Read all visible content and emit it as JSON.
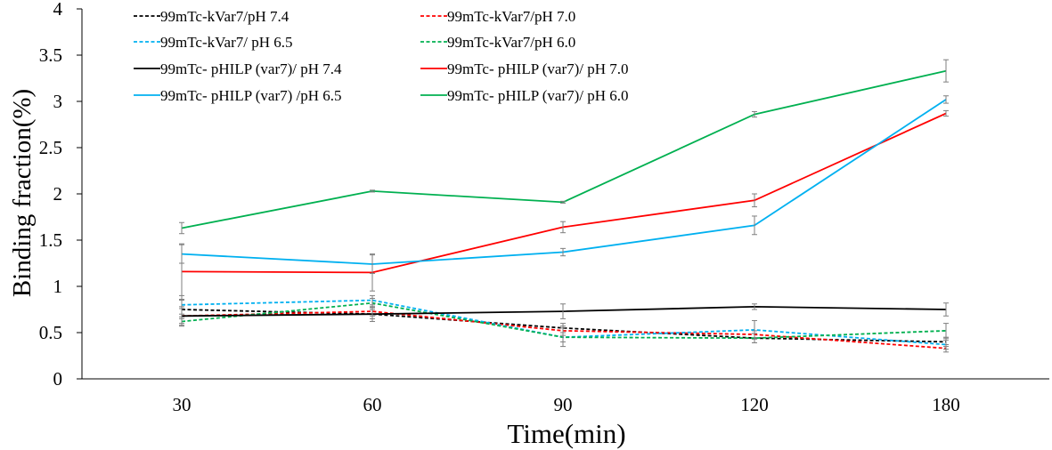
{
  "chart_data": {
    "type": "line",
    "title": "",
    "xlabel": "Time(min)",
    "ylabel": "Binding fraction(%)",
    "categories": [
      "30",
      "60",
      "90",
      "120",
      "180"
    ],
    "ylim": [
      0,
      4
    ],
    "yticks": [
      "0",
      "0.5",
      "1",
      "1.5",
      "2",
      "2.5",
      "3",
      "3.5",
      "4"
    ],
    "legend_position": "top-left",
    "series": [
      {
        "name": "99mTc-kVar7/pH 7.4",
        "color": "#000000",
        "dashed": true,
        "values": [
          0.75,
          0.7,
          0.55,
          0.44,
          0.4
        ],
        "errors": [
          0.1,
          0.05,
          0.05,
          0.05,
          0.05
        ]
      },
      {
        "name": "99mTc-kVar7/pH 7.0",
        "color": "#ff0000",
        "dashed": true,
        "values": [
          0.68,
          0.73,
          0.52,
          0.48,
          0.33
        ],
        "errors": [
          0.08,
          0.05,
          0.05,
          0.04,
          0.04
        ]
      },
      {
        "name": "99mTc-kVar7/ pH 6.5",
        "color": "#00b0f0",
        "dashed": true,
        "values": [
          0.8,
          0.85,
          0.45,
          0.53,
          0.37
        ],
        "errors": [
          0.1,
          0.05,
          0.1,
          0.1,
          0.05
        ]
      },
      {
        "name": "99mTc-kVar7/pH 6.0",
        "color": "#00b050",
        "dashed": true,
        "values": [
          0.62,
          0.82,
          0.45,
          0.44,
          0.52
        ],
        "errors": [
          0.05,
          0.05,
          0.05,
          0.05,
          0.08
        ]
      },
      {
        "name": "99mTc- pHILP (var7)/ pH 7.4",
        "color": "#000000",
        "dashed": false,
        "values": [
          0.68,
          0.7,
          0.73,
          0.78,
          0.75
        ],
        "errors": [
          0.1,
          0.08,
          0.08,
          0.03,
          0.07
        ]
      },
      {
        "name": "99mTc- pHILP (var7)/ pH 7.0",
        "color": "#ff0000",
        "dashed": false,
        "values": [
          1.16,
          1.15,
          1.64,
          1.93,
          2.87
        ],
        "errors": [
          0.3,
          0.2,
          0.06,
          0.07,
          0.03
        ]
      },
      {
        "name": "99mTc- pHILP (var7) /pH 6.5",
        "color": "#00b0f0",
        "dashed": false,
        "values": [
          1.35,
          1.24,
          1.37,
          1.66,
          3.02
        ],
        "errors": [
          0.1,
          0.1,
          0.04,
          0.1,
          0.04
        ]
      },
      {
        "name": "99mTc- pHILP (var7)/ pH 6.0",
        "color": "#00b050",
        "dashed": false,
        "values": [
          1.63,
          2.03,
          1.91,
          2.86,
          3.33
        ],
        "errors": [
          0.06,
          0.01,
          0.01,
          0.03,
          0.12
        ]
      }
    ]
  }
}
